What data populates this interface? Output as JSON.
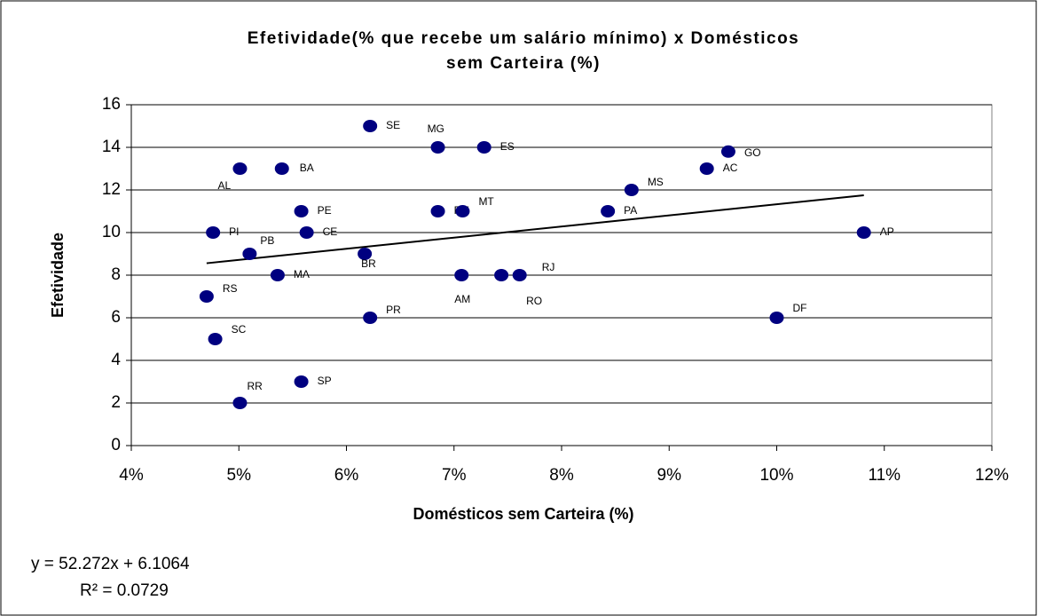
{
  "chart_data": {
    "type": "scatter",
    "title": [
      "Efetividade(% que recebe um salário mínimo) x Domésticos",
      "sem Carteira (%)"
    ],
    "x_label": "Domésticos sem Carteira (%)",
    "y_label": "Efetividade",
    "xlim": [
      4,
      12
    ],
    "xticks": [
      {
        "value": 4,
        "label": "4%"
      },
      {
        "value": 5,
        "label": "5%"
      },
      {
        "value": 6,
        "label": "6%"
      },
      {
        "value": 7,
        "label": "7%"
      },
      {
        "value": 8,
        "label": "8%"
      },
      {
        "value": 9,
        "label": "9%"
      },
      {
        "value": 10,
        "label": "10%"
      },
      {
        "value": 11,
        "label": "11%"
      },
      {
        "value": 12,
        "label": "12%"
      }
    ],
    "ylim": [
      0,
      16
    ],
    "yticks": [
      0,
      2,
      4,
      6,
      8,
      10,
      12,
      14,
      16
    ],
    "grid": true,
    "color": "#000080",
    "labels": [
      "SE",
      "MG",
      "ES",
      "GO",
      "AC",
      "MS",
      "BA",
      "AL",
      "PE",
      "RN",
      "MT",
      "PA",
      "AP",
      "PI",
      "CE",
      "PB",
      "BR",
      "MA",
      "AM",
      "RO",
      "RJ",
      "RS",
      "DF",
      "PR",
      "SC",
      "SP",
      "RR"
    ],
    "x": [
      6.22,
      6.85,
      7.28,
      9.55,
      9.35,
      8.65,
      5.4,
      5.01,
      5.58,
      6.85,
      7.08,
      8.43,
      10.81,
      4.76,
      5.63,
      5.1,
      6.17,
      5.36,
      7.07,
      7.44,
      7.61,
      4.7,
      10.0,
      6.22,
      4.78,
      5.58,
      5.01
    ],
    "values": [
      15,
      14,
      14,
      13.8,
      13,
      12,
      13,
      13,
      11,
      11,
      11,
      11,
      10,
      10,
      10,
      9,
      9,
      8,
      8,
      8,
      8,
      7,
      6,
      6,
      5,
      3,
      2
    ],
    "trendline": {
      "x": [
        4.7,
        10.81
      ],
      "values": [
        8.56,
        11.75
      ],
      "equation": "y = 52.272x + 6.1064",
      "r2": "R² = 0.0729"
    }
  }
}
